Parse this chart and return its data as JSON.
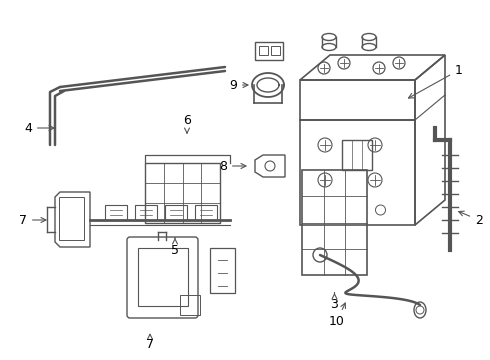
{
  "background_color": "#ffffff",
  "line_color": "#555555",
  "text_color": "#000000",
  "fig_width": 4.9,
  "fig_height": 3.6,
  "dpi": 100
}
